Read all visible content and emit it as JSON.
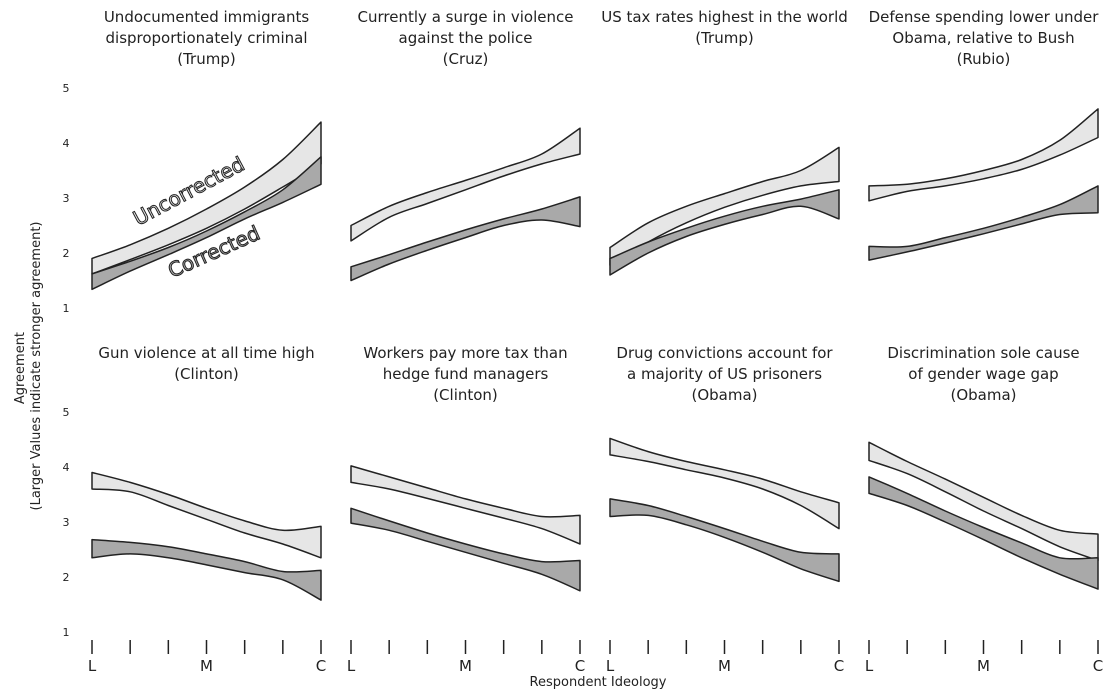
{
  "figure": {
    "ylabel_line1": "Agreement",
    "ylabel_line2": "(Larger Values indicate stronger agreement)",
    "xlabel": "Respondent Ideology"
  },
  "colors": {
    "uncorrected": "#e6e6e6",
    "corrected": "#a9a9a9",
    "stroke": "#222222"
  },
  "chart_data": [
    {
      "type": "area",
      "title": [
        "Undocumented immigrants",
        "disproportionately criminal",
        "(Trump)"
      ],
      "x": [
        "L",
        "",
        "",
        "M",
        "",
        "",
        "C"
      ],
      "ylim": [
        1,
        5
      ],
      "yticks": [
        1,
        2,
        3,
        4,
        5
      ],
      "annotations": [
        "Uncorrected",
        "Corrected"
      ],
      "series": [
        {
          "key": "uncorrected",
          "lower": [
            1.62,
            1.88,
            2.15,
            2.45,
            2.8,
            3.2,
            3.62
          ],
          "upper": [
            1.9,
            2.15,
            2.45,
            2.8,
            3.2,
            3.7,
            4.38
          ]
        },
        {
          "key": "corrected",
          "lower": [
            1.34,
            1.67,
            1.97,
            2.28,
            2.62,
            2.92,
            3.25
          ],
          "upper": [
            1.62,
            1.85,
            2.1,
            2.4,
            2.75,
            3.15,
            3.75
          ]
        }
      ]
    },
    {
      "type": "area",
      "title": [
        "Currently a surge in violence",
        "against the police",
        "(Cruz)"
      ],
      "x": [
        "L",
        "",
        "",
        "M",
        "",
        "",
        "C"
      ],
      "ylim": [
        1,
        5
      ],
      "yticks": [],
      "series": [
        {
          "key": "uncorrected",
          "lower": [
            2.22,
            2.65,
            2.9,
            3.15,
            3.4,
            3.62,
            3.8
          ],
          "upper": [
            2.5,
            2.85,
            3.1,
            3.32,
            3.55,
            3.8,
            4.27
          ]
        },
        {
          "key": "corrected",
          "lower": [
            1.5,
            1.8,
            2.05,
            2.28,
            2.5,
            2.6,
            2.48
          ],
          "upper": [
            1.75,
            1.97,
            2.2,
            2.42,
            2.62,
            2.8,
            3.02
          ]
        }
      ]
    },
    {
      "type": "area",
      "title": [
        "US tax rates highest in the world",
        "(Trump)"
      ],
      "x": [
        "L",
        "",
        "",
        "M",
        "",
        "",
        "C"
      ],
      "ylim": [
        1,
        5
      ],
      "yticks": [],
      "series": [
        {
          "key": "uncorrected",
          "lower": [
            1.78,
            2.2,
            2.55,
            2.83,
            3.05,
            3.22,
            3.3
          ],
          "upper": [
            2.1,
            2.55,
            2.85,
            3.08,
            3.3,
            3.5,
            3.92
          ]
        },
        {
          "key": "corrected",
          "lower": [
            1.6,
            2.0,
            2.3,
            2.52,
            2.7,
            2.85,
            2.62
          ],
          "upper": [
            1.9,
            2.2,
            2.45,
            2.67,
            2.85,
            2.98,
            3.15
          ]
        }
      ]
    },
    {
      "type": "area",
      "title": [
        "Defense spending lower under",
        "Obama, relative to Bush",
        "(Rubio)"
      ],
      "x": [
        "L",
        "",
        "",
        "M",
        "",
        "",
        "C"
      ],
      "ylim": [
        1,
        5
      ],
      "yticks": [],
      "series": [
        {
          "key": "uncorrected",
          "lower": [
            2.95,
            3.12,
            3.22,
            3.35,
            3.52,
            3.78,
            4.1
          ],
          "upper": [
            3.22,
            3.25,
            3.35,
            3.5,
            3.7,
            4.05,
            4.62
          ]
        },
        {
          "key": "corrected",
          "lower": [
            1.87,
            2.02,
            2.18,
            2.35,
            2.53,
            2.7,
            2.73
          ],
          "upper": [
            2.12,
            2.12,
            2.28,
            2.45,
            2.65,
            2.88,
            3.22
          ]
        }
      ]
    },
    {
      "type": "area",
      "title": [
        "Gun violence at all time high",
        "(Clinton)"
      ],
      "x": [
        "L",
        "",
        "",
        "M",
        "",
        "",
        "C"
      ],
      "ylim": [
        1,
        5
      ],
      "yticks": [
        1,
        2,
        3,
        4,
        5
      ],
      "series": [
        {
          "key": "uncorrected",
          "lower": [
            3.6,
            3.55,
            3.3,
            3.05,
            2.8,
            2.6,
            2.35
          ],
          "upper": [
            3.9,
            3.72,
            3.5,
            3.25,
            3.02,
            2.85,
            2.92
          ]
        },
        {
          "key": "corrected",
          "lower": [
            2.35,
            2.42,
            2.35,
            2.22,
            2.08,
            1.95,
            1.58
          ],
          "upper": [
            2.68,
            2.63,
            2.55,
            2.42,
            2.28,
            2.1,
            2.12
          ]
        }
      ]
    },
    {
      "type": "area",
      "title": [
        "Workers pay more tax than",
        "hedge fund managers",
        "(Clinton)"
      ],
      "x": [
        "L",
        "",
        "",
        "M",
        "",
        "",
        "C"
      ],
      "ylim": [
        1,
        5
      ],
      "yticks": [],
      "series": [
        {
          "key": "uncorrected",
          "lower": [
            3.72,
            3.6,
            3.43,
            3.25,
            3.07,
            2.88,
            2.6
          ],
          "upper": [
            4.02,
            3.82,
            3.62,
            3.42,
            3.25,
            3.1,
            3.12
          ]
        },
        {
          "key": "corrected",
          "lower": [
            2.98,
            2.85,
            2.65,
            2.45,
            2.25,
            2.05,
            1.75
          ],
          "upper": [
            3.25,
            3.02,
            2.8,
            2.6,
            2.42,
            2.28,
            2.3
          ]
        }
      ]
    },
    {
      "type": "area",
      "title": [
        "Drug convictions account for",
        "a majority of US prisoners",
        "(Obama)"
      ],
      "x": [
        "L",
        "",
        "",
        "M",
        "",
        "",
        "C"
      ],
      "ylim": [
        1,
        5
      ],
      "yticks": [],
      "series": [
        {
          "key": "uncorrected",
          "lower": [
            4.22,
            4.1,
            3.95,
            3.8,
            3.6,
            3.3,
            2.88
          ],
          "upper": [
            4.52,
            4.28,
            4.1,
            3.95,
            3.78,
            3.55,
            3.35
          ]
        },
        {
          "key": "corrected",
          "lower": [
            3.1,
            3.12,
            2.95,
            2.72,
            2.45,
            2.15,
            1.92
          ],
          "upper": [
            3.42,
            3.3,
            3.1,
            2.88,
            2.65,
            2.45,
            2.42
          ]
        }
      ]
    },
    {
      "type": "area",
      "title": [
        "Discrimination sole cause",
        "of gender wage gap",
        "(Obama)"
      ],
      "x": [
        "L",
        "",
        "",
        "M",
        "",
        "",
        "C"
      ],
      "ylim": [
        1,
        5
      ],
      "yticks": [],
      "series": [
        {
          "key": "uncorrected",
          "lower": [
            4.12,
            3.88,
            3.55,
            3.2,
            2.88,
            2.55,
            2.3
          ],
          "upper": [
            4.45,
            4.1,
            3.78,
            3.45,
            3.12,
            2.85,
            2.78
          ]
        },
        {
          "key": "corrected",
          "lower": [
            3.52,
            3.3,
            3.0,
            2.68,
            2.35,
            2.05,
            1.78
          ],
          "upper": [
            3.82,
            3.52,
            3.2,
            2.9,
            2.62,
            2.35,
            2.35
          ]
        }
      ]
    }
  ]
}
